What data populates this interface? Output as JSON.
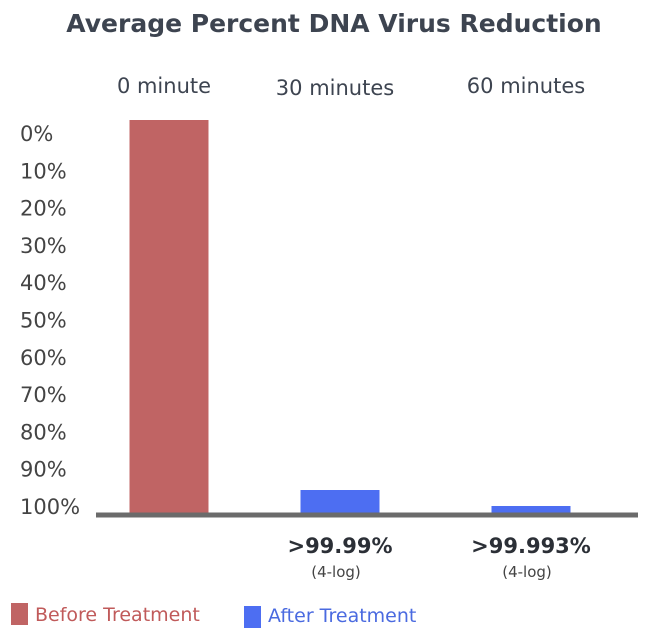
{
  "chart_data": {
    "type": "bar",
    "title": "Average Percent DNA Virus Reduction",
    "categories": [
      "0 minute",
      "30 minutes",
      "60 minutes"
    ],
    "series": [
      {
        "name": "Before Treatment",
        "color": "#c06464",
        "values": [
          100,
          null,
          null
        ]
      },
      {
        "name": "After Treatment",
        "color": "#4d6ef2",
        "values": [
          null,
          0.01,
          0.007
        ]
      }
    ],
    "y_tick_labels": [
      "0%",
      "10%",
      "20%",
      "30%",
      "40%",
      "50%",
      "60%",
      "70%",
      "80%",
      "90%",
      "100%"
    ],
    "y_axis_inverted": true,
    "ylim": [
      0,
      100
    ],
    "data_labels": [
      {
        "main": "",
        "sub": ""
      },
      {
        "main": ">99.99%",
        "sub": "(4-log)"
      },
      {
        "main": ">99.993%",
        "sub": "(4-log)"
      }
    ],
    "legend_position": "bottom-left",
    "grid": false,
    "axis_color": "#6b6b6b"
  }
}
